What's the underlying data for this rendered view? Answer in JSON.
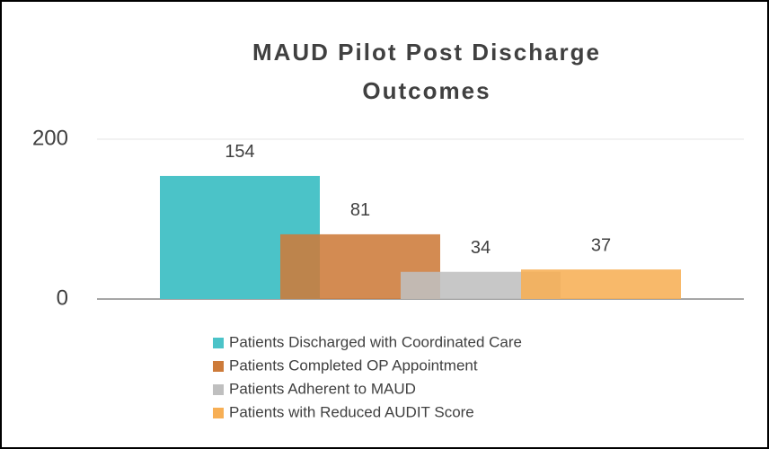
{
  "chart_data": {
    "type": "bar",
    "title_lines": [
      "MAUD Pilot Post Discharge",
      "Outcomes"
    ],
    "categories": [
      null
    ],
    "series": [
      {
        "name": "Patients Discharged with Coordinated Care",
        "color": "#4BC3C8",
        "values": [
          154
        ]
      },
      {
        "name": "Patients Completed OP Appointment",
        "color": "#CD7B3A",
        "values": [
          81
        ]
      },
      {
        "name": "Patients Adherent to MAUD",
        "color": "#BFBFBF",
        "values": [
          34
        ]
      },
      {
        "name": "Patients with Reduced AUDIT Score",
        "color": "#F7AF55",
        "values": [
          37
        ]
      }
    ],
    "ylim": [
      0,
      200
    ],
    "yticks": [
      0,
      200
    ],
    "grid": true,
    "legend": "bottom"
  }
}
